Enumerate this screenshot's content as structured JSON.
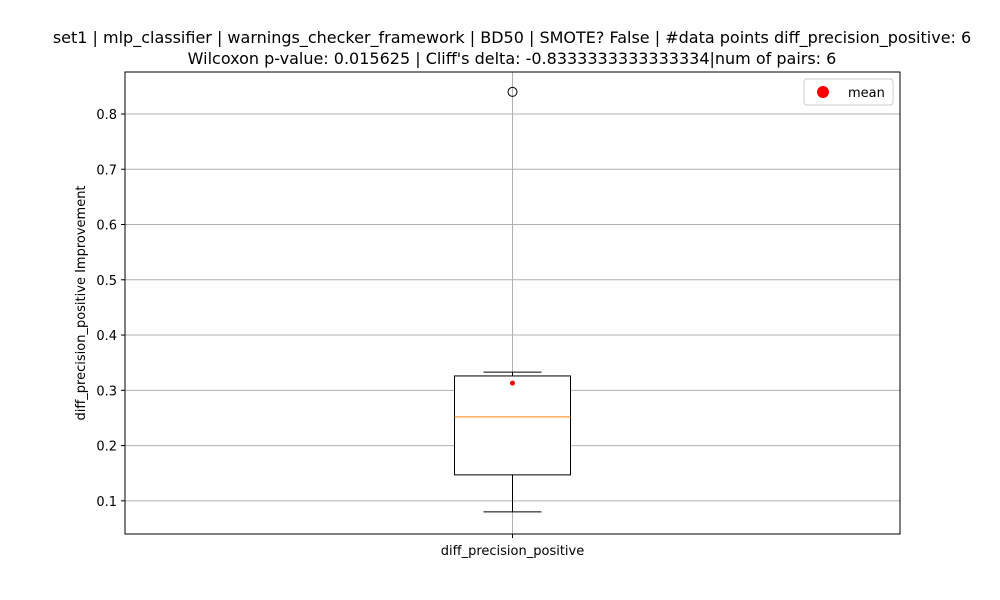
{
  "chart_data": {
    "type": "box",
    "title_line1": "set1 | mlp_classifier | warnings_checker_framework | BD50 | SMOTE? False | #data points diff_precision_positive: 6",
    "title_line2": "Wilcoxon p-value: 0.015625 | Cliff's delta: -0.8333333333333334|num of pairs: 6",
    "xlabel": "",
    "ylabel": "diff_precision_positive Improvement",
    "categories": [
      "diff_precision_positive"
    ],
    "ylim": [
      0.04,
      0.876
    ],
    "yticks": [
      0.1,
      0.2,
      0.3,
      0.4,
      0.5,
      0.6,
      0.7,
      0.8
    ],
    "ytick_labels": [
      "0.1",
      "0.2",
      "0.3",
      "0.4",
      "0.5",
      "0.6",
      "0.7",
      "0.8"
    ],
    "grid": true,
    "legend": {
      "position": "top-right",
      "entries": [
        {
          "label": "mean",
          "color": "#ff0000",
          "marker": "circle"
        }
      ]
    },
    "boxes": [
      {
        "category": "diff_precision_positive",
        "whisker_low": 0.08,
        "q1": 0.147,
        "median": 0.252,
        "q3": 0.326,
        "whisker_high": 0.333,
        "outliers": [
          0.84
        ],
        "mean": 0.313
      }
    ],
    "colors": {
      "box": "#000000",
      "median": "#ff7f0e",
      "mean": "#ff0000",
      "grid": "#b0b0b0"
    }
  }
}
